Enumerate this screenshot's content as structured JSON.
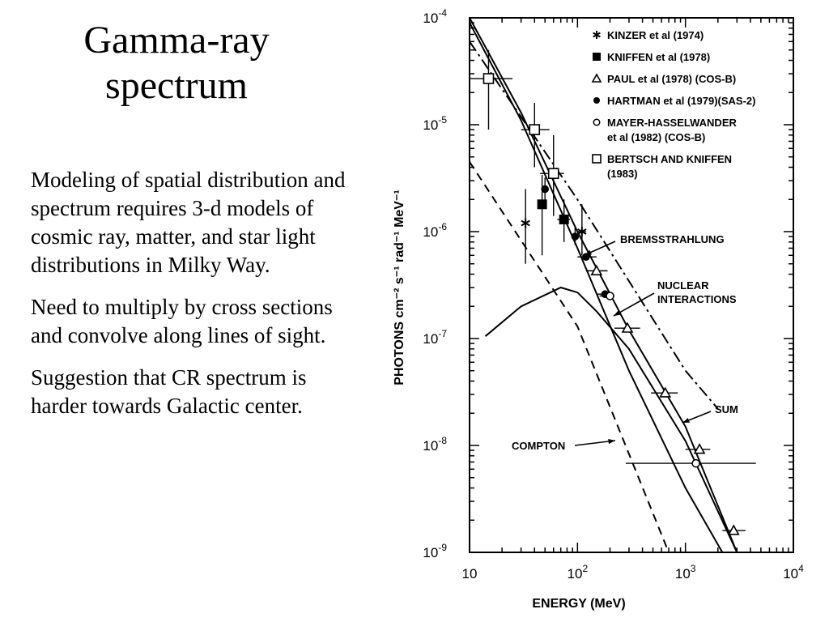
{
  "slide": {
    "title_line1": "Gamma-ray",
    "title_line2": "spectrum",
    "bullets": [
      "Modeling of spatial distribution and spectrum requires 3-d models of cosmic ray, matter, and star light distributions in Milky Way.",
      "Need to multiply by cross sections and convolve along lines of sight.",
      "Suggestion that CR spectrum is harder towards Galactic center."
    ]
  },
  "chart_data": {
    "type": "scatter",
    "xscale": "log",
    "yscale": "log",
    "xlim": [
      10,
      10000
    ],
    "ylim": [
      1e-09,
      0.0001
    ],
    "xlabel": "ENERGY (MeV)",
    "ylabel": "PHOTONS cm⁻² s⁻¹ rad⁻¹ MeV⁻¹",
    "x_ticks": [
      {
        "value": 10,
        "base": "10",
        "exp": ""
      },
      {
        "value": 100,
        "base": "10",
        "exp": "2"
      },
      {
        "value": 1000,
        "base": "10",
        "exp": "3"
      },
      {
        "value": 10000,
        "base": "10",
        "exp": "4"
      }
    ],
    "y_ticks": [
      {
        "value": 0.0001,
        "base": "10",
        "exp": "-4"
      },
      {
        "value": 1e-05,
        "base": "10",
        "exp": "-5"
      },
      {
        "value": 1e-06,
        "base": "10",
        "exp": "-6"
      },
      {
        "value": 1e-07,
        "base": "10",
        "exp": "-7"
      },
      {
        "value": 1e-08,
        "base": "10",
        "exp": "-8"
      },
      {
        "value": 1e-09,
        "base": "10",
        "exp": "-9"
      }
    ],
    "legend_position": "top-right",
    "datasets": [
      {
        "name": "KINZER et al (1974)",
        "marker": "asterisk",
        "points": [
          {
            "x": 33,
            "y": 1.2e-06,
            "ylo": 5e-07,
            "yhi": 2.5e-06,
            "xlo": 33,
            "xhi": 33
          },
          {
            "x": 110,
            "y": 1e-06,
            "ylo": 6e-07,
            "yhi": 1.8e-06,
            "xlo": 100,
            "xhi": 120
          }
        ]
      },
      {
        "name": "KNIFFEN et al (1978)",
        "marker": "filled-square",
        "points": [
          {
            "x": 47,
            "y": 1.8e-06,
            "ylo": 6e-07,
            "yhi": 3.4e-06,
            "xlo": 44,
            "xhi": 50
          },
          {
            "x": 75,
            "y": 1.3e-06,
            "ylo": 8e-07,
            "yhi": 2e-06,
            "xlo": 65,
            "xhi": 85
          }
        ]
      },
      {
        "name": "PAUL et al (1978) (COS-B)",
        "marker": "open-triangle",
        "points": [
          {
            "x": 150,
            "y": 4.3e-07,
            "ylo": 4.3e-07,
            "yhi": 4.3e-07,
            "xlo": 120,
            "xhi": 190
          },
          {
            "x": 290,
            "y": 1.25e-07,
            "ylo": 1.25e-07,
            "yhi": 1.25e-07,
            "xlo": 220,
            "xhi": 380
          },
          {
            "x": 650,
            "y": 3.1e-08,
            "ylo": 3.1e-08,
            "yhi": 3.1e-08,
            "xlo": 480,
            "xhi": 850
          },
          {
            "x": 1350,
            "y": 9.2e-09,
            "ylo": 9.2e-09,
            "yhi": 9.2e-09,
            "xlo": 1000,
            "xhi": 1700
          },
          {
            "x": 2800,
            "y": 1.6e-09,
            "ylo": 1.6e-09,
            "yhi": 1.6e-09,
            "xlo": 2200,
            "xhi": 3600
          }
        ]
      },
      {
        "name": "HARTMAN et al (1979)(SAS-2)",
        "marker": "filled-circle",
        "points": [
          {
            "x": 50,
            "y": 2.5e-06,
            "ylo": 1.8e-06,
            "yhi": 3.2e-06,
            "xlo": 48,
            "xhi": 52
          },
          {
            "x": 95,
            "y": 9e-07,
            "ylo": 7.5e-07,
            "yhi": 1.1e-06,
            "xlo": 90,
            "xhi": 100
          },
          {
            "x": 120,
            "y": 5.8e-07,
            "ylo": 5.8e-07,
            "yhi": 5.8e-07,
            "xlo": 100,
            "xhi": 150
          },
          {
            "x": 180,
            "y": 2.6e-07,
            "ylo": 2.6e-07,
            "yhi": 2.6e-07,
            "xlo": 150,
            "xhi": 200
          }
        ]
      },
      {
        "name": "MAYER-HASSELWANDER et al (1982) (COS-B)",
        "marker": "open-circle",
        "points": [
          {
            "x": 200,
            "y": 2.5e-07,
            "ylo": 2.5e-07,
            "yhi": 2.5e-07,
            "xlo": 160,
            "xhi": 220
          },
          {
            "x": 1250,
            "y": 6.8e-09,
            "ylo": 6.8e-09,
            "yhi": 6.8e-09,
            "xlo": 280,
            "xhi": 4500
          }
        ]
      },
      {
        "name": "BERTSCH AND KNIFFEN (1983)",
        "marker": "open-square",
        "points": [
          {
            "x": 15,
            "y": 2.7e-05,
            "ylo": 9e-06,
            "yhi": 5e-05,
            "xlo": 10,
            "xhi": 25
          },
          {
            "x": 40,
            "y": 9e-06,
            "ylo": 4e-06,
            "yhi": 1.6e-05,
            "xlo": 30,
            "xhi": 55
          },
          {
            "x": 60,
            "y": 3.5e-06,
            "ylo": 1.4e-06,
            "yhi": 8e-06,
            "xlo": 45,
            "xhi": 75
          }
        ]
      }
    ],
    "curves": [
      {
        "name": "SUM",
        "style": "solid",
        "points": [
          [
            10,
            0.0001
          ],
          [
            30,
            1.3e-05
          ],
          [
            100,
            1e-06
          ],
          [
            300,
            1.2e-07
          ],
          [
            1000,
            1.5e-08
          ],
          [
            3000,
            1e-09
          ]
        ]
      },
      {
        "name": "BREMSSTRAHLUNG",
        "style": "solid",
        "points": [
          [
            10,
            9e-05
          ],
          [
            30,
            1.1e-05
          ],
          [
            100,
            7e-07
          ],
          [
            300,
            5e-08
          ],
          [
            1000,
            4e-09
          ],
          [
            2200,
            1e-09
          ]
        ]
      },
      {
        "name": "NUCLEAR INTERACTIONS",
        "style": "solid",
        "points": [
          [
            14,
            1.05e-07
          ],
          [
            30,
            2e-07
          ],
          [
            70,
            3e-07
          ],
          [
            100,
            2.7e-07
          ],
          [
            150,
            1.8e-07
          ],
          [
            300,
            8e-08
          ],
          [
            1000,
            1.1e-08
          ],
          [
            3000,
            1e-09
          ]
        ]
      },
      {
        "name": "COMPTON (upper)",
        "style": "dash-dot",
        "points": [
          [
            10,
            6e-05
          ],
          [
            100,
            2e-06
          ],
          [
            1000,
            5e-08
          ],
          [
            2000,
            2.2e-08
          ]
        ]
      },
      {
        "name": "COMPTON",
        "style": "dashed",
        "points": [
          [
            10,
            4.5e-06
          ],
          [
            100,
            1.3e-07
          ],
          [
            700,
            1e-09
          ]
        ]
      }
    ],
    "annotations": [
      {
        "text": "BREMSSTRAHLUNG"
      },
      {
        "text": "NUCLEAR"
      },
      {
        "text": "INTERACTIONS"
      },
      {
        "text": "SUM"
      },
      {
        "text": "COMPTON"
      }
    ]
  }
}
